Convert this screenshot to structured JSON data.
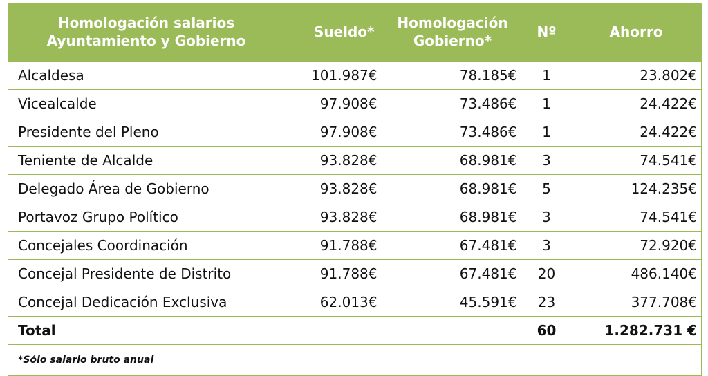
{
  "table": {
    "headers": {
      "category": [
        "Homologación salarios",
        "Ayuntamiento y Gobierno"
      ],
      "sueldo": "Sueldo*",
      "homologacion": [
        "Homologación",
        "Gobierno*"
      ],
      "numero": "Nº",
      "ahorro": "Ahorro"
    },
    "rows": [
      {
        "category": "Alcaldesa",
        "sueldo": "101.987€",
        "homologacion": "78.185€",
        "numero": "1",
        "ahorro": "23.802€"
      },
      {
        "category": "Vicealcalde",
        "sueldo": "97.908€",
        "homologacion": "73.486€",
        "numero": "1",
        "ahorro": "24.422€"
      },
      {
        "category": "Presidente del Pleno",
        "sueldo": "97.908€",
        "homologacion": "73.486€",
        "numero": "1",
        "ahorro": "24.422€"
      },
      {
        "category": "Teniente de Alcalde",
        "sueldo": "93.828€",
        "homologacion": "68.981€",
        "numero": "3",
        "ahorro": "74.541€"
      },
      {
        "category": "Delegado Área de Gobierno",
        "sueldo": "93.828€",
        "homologacion": "68.981€",
        "numero": "5",
        "ahorro": "124.235€"
      },
      {
        "category": "Portavoz Grupo Político",
        "sueldo": "93.828€",
        "homologacion": "68.981€",
        "numero": "3",
        "ahorro": "74.541€"
      },
      {
        "category": "Concejales Coordinación",
        "sueldo": "91.788€",
        "homologacion": "67.481€",
        "numero": "3",
        "ahorro": "72.920€"
      },
      {
        "category": "Concejal Presidente de Distrito",
        "sueldo": "91.788€",
        "homologacion": "67.481€",
        "numero": "20",
        "ahorro": "486.140€"
      },
      {
        "category": "Concejal Dedicación Exclusiva",
        "sueldo": "62.013€",
        "homologacion": "45.591€",
        "numero": "23",
        "ahorro": "377.708€"
      }
    ],
    "total": {
      "label": "Total",
      "numero": "60",
      "ahorro": "1.282.731 €"
    },
    "footnote": "*Sólo salario bruto anual"
  },
  "colors": {
    "header_bg": "#9bbb59",
    "header_text": "#ffffff",
    "border": "#9bbb59"
  }
}
